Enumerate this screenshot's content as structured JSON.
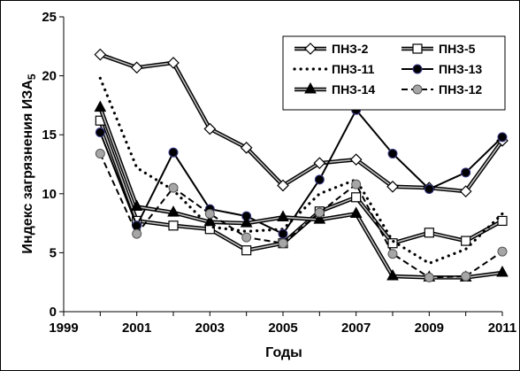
{
  "chart_data": {
    "type": "line",
    "xlabel": "Годы",
    "ylabel": "Индекс   загрязнения   ИЗА",
    "ylabel_sub": "5",
    "xlim": [
      1999,
      2011
    ],
    "ylim": [
      0,
      25
    ],
    "xticks": [
      1999,
      2001,
      2003,
      2005,
      2007,
      2009,
      2011
    ],
    "yticks": [
      0,
      5,
      10,
      15,
      20,
      25
    ],
    "grid": false,
    "legend_position": "top-right",
    "series": [
      {
        "name": "ПНЗ-2",
        "style": "double-line",
        "marker": "diamond",
        "color": "#000000",
        "x": [
          2000,
          2001,
          2002,
          2003,
          2004,
          2005,
          2006,
          2007,
          2008,
          2009,
          2010,
          2011
        ],
        "y": [
          21.8,
          20.7,
          21.1,
          15.5,
          13.9,
          10.7,
          12.6,
          12.9,
          10.6,
          10.5,
          10.2,
          14.5
        ]
      },
      {
        "name": "ПНЗ-5",
        "style": "double-line",
        "marker": "square",
        "color": "#000000",
        "x": [
          2000,
          2001,
          2002,
          2003,
          2004,
          2005,
          2006,
          2007,
          2008,
          2009,
          2010,
          2011
        ],
        "y": [
          16.2,
          7.7,
          7.3,
          7.0,
          5.2,
          5.8,
          8.5,
          9.7,
          5.8,
          6.7,
          6.0,
          7.7
        ]
      },
      {
        "name": "ПНЗ-11",
        "style": "dotted",
        "marker": "none",
        "color": "#000000",
        "x": [
          2000,
          2001,
          2002,
          2003,
          2004,
          2005,
          2006,
          2007,
          2008,
          2009,
          2010,
          2011
        ],
        "y": [
          19.8,
          12.2,
          10.3,
          7.2,
          6.8,
          7.0,
          10.0,
          11.2,
          6.0,
          4.1,
          5.3,
          8.3
        ]
      },
      {
        "name": "ПНЗ-13",
        "style": "solid",
        "marker": "circle-filled",
        "color": "#000000",
        "x": [
          2000,
          2001,
          2002,
          2003,
          2004,
          2005,
          2006,
          2007,
          2008,
          2009,
          2010,
          2011
        ],
        "y": [
          15.2,
          7.3,
          13.5,
          8.7,
          8.1,
          6.6,
          11.2,
          17.1,
          13.4,
          10.4,
          11.8,
          14.8
        ]
      },
      {
        "name": "ПНЗ-14",
        "style": "double-line",
        "marker": "triangle-filled",
        "color": "#000000",
        "x": [
          2000,
          2001,
          2002,
          2003,
          2004,
          2005,
          2006,
          2007,
          2008,
          2009,
          2010,
          2011
        ],
        "y": [
          17.3,
          8.9,
          8.4,
          7.6,
          7.5,
          8.0,
          7.8,
          8.3,
          3.0,
          2.9,
          2.9,
          3.3
        ]
      },
      {
        "name": "ПНЗ-12",
        "style": "dashed",
        "marker": "circle-gray",
        "color": "#000000",
        "x": [
          2000,
          2001,
          2002,
          2003,
          2004,
          2005,
          2006,
          2007,
          2008,
          2009,
          2010,
          2011
        ],
        "y": [
          13.4,
          6.6,
          10.5,
          8.3,
          6.3,
          5.8,
          8.4,
          10.8,
          4.9,
          2.9,
          3.0,
          5.1
        ]
      }
    ]
  }
}
